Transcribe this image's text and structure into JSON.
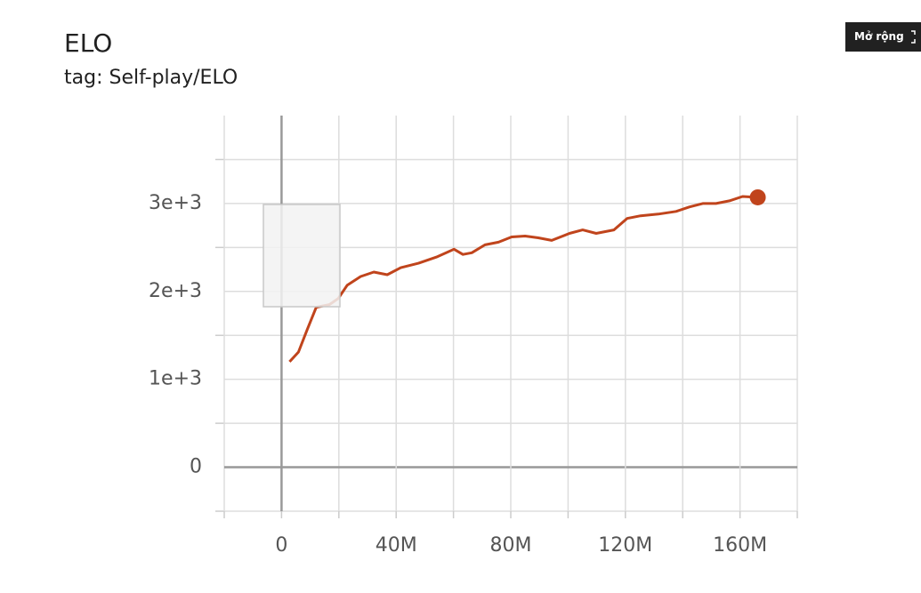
{
  "chart_data": {
    "type": "line",
    "title": "ELO",
    "subtitle": "tag: Self-play/ELO",
    "x": [
      2800000,
      5900000,
      9000000,
      12100000,
      16700000,
      19800000,
      22900000,
      27600000,
      32200000,
      36900000,
      41600000,
      47800000,
      54000000,
      60200000,
      63300000,
      66400000,
      71000000,
      75700000,
      80300000,
      85000000,
      89600000,
      94300000,
      100500000,
      105100000,
      109800000,
      116000000,
      120600000,
      125300000,
      131500000,
      137700000,
      142300000,
      147000000,
      151600000,
      156300000,
      160900000,
      166200000
    ],
    "values": [
      1200,
      1310,
      1570,
      1820,
      1850,
      1920,
      2070,
      2170,
      2220,
      2190,
      2270,
      2320,
      2390,
      2480,
      2420,
      2440,
      2530,
      2560,
      2620,
      2630,
      2610,
      2580,
      2660,
      2700,
      2660,
      2700,
      2830,
      2860,
      2880,
      2910,
      2960,
      3000,
      3000,
      3030,
      3080,
      3070
    ],
    "color": "#c0441c",
    "xlim": [
      -20000000,
      180000000
    ],
    "xticks": [
      0,
      {
        "value": 40000000,
        "label": "40M"
      },
      {
        "value": 80000000,
        "label": "80M"
      },
      {
        "value": 120000000,
        "label": "120M"
      },
      {
        "value": 160000000,
        "label": "160M"
      }
    ],
    "x_minor_ticks": [
      -20000000,
      20000000,
      60000000,
      100000000,
      140000000,
      180000000
    ],
    "ylim": [
      -500,
      4000
    ],
    "yticks": [
      0,
      {
        "value": 1000,
        "label": "1e+3"
      },
      {
        "value": 2000,
        "label": "2e+3"
      },
      {
        "value": 3000,
        "label": "3e+3"
      }
    ],
    "y_minor_ticks": [
      -500,
      500,
      1500,
      2500,
      3500
    ],
    "grid": true
  },
  "toolbar": {
    "expand_button": "Mở rộng"
  }
}
